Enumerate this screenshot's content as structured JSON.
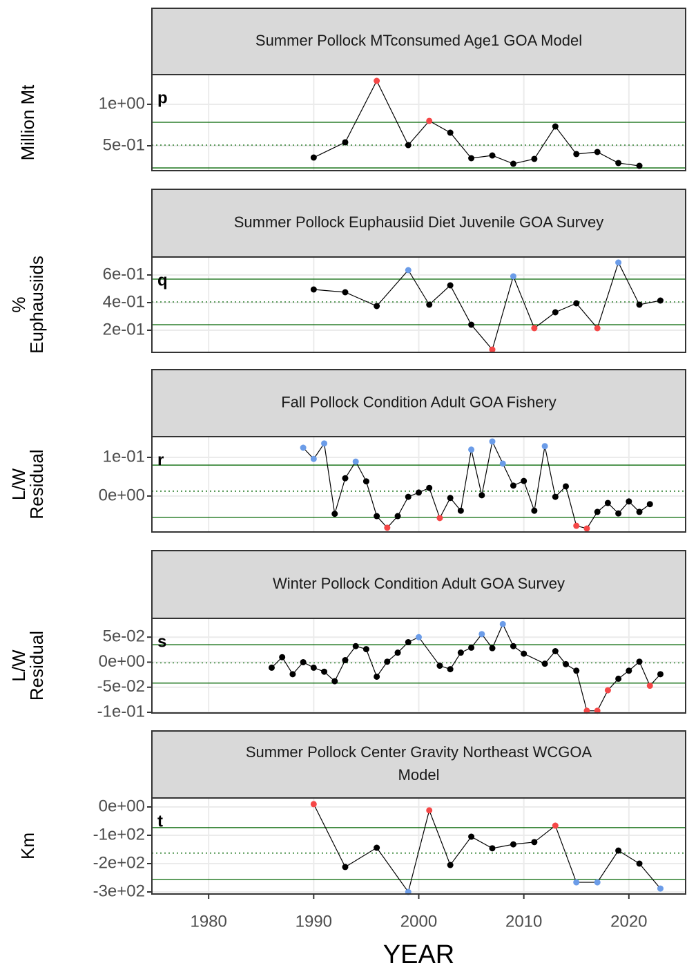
{
  "x_axis": {
    "label": "YEAR",
    "xlim": [
      1974.6,
      2025.4
    ],
    "xticks": [
      1980,
      1990,
      2000,
      2010,
      2020
    ]
  },
  "chart_data": [
    {
      "type": "line",
      "title": "Summer Pollock MTconsumed Age1 GOA Model",
      "panel_label": "p",
      "ylabel": [
        "Million Mt"
      ],
      "x": [
        1990,
        1993,
        1996,
        1999,
        2001,
        2003,
        2005,
        2007,
        2009,
        2011,
        2013,
        2015,
        2017,
        2019,
        2021
      ],
      "values": [
        0.358,
        0.542,
        1.283,
        0.508,
        0.8,
        0.658,
        0.35,
        0.383,
        0.283,
        0.342,
        0.733,
        0.4,
        0.425,
        0.292,
        0.258
      ],
      "point_colors": [
        "#000000",
        "#000000",
        "#f54747",
        "#000000",
        "#f54747",
        "#000000",
        "#000000",
        "#000000",
        "#000000",
        "#000000",
        "#000000",
        "#000000",
        "#000000",
        "#000000",
        "#000000"
      ],
      "line_color": "#000000",
      "reference_lines": {
        "upper": 0.783,
        "mean": 0.508,
        "lower": 0.233
      },
      "reference_line_color": "#006400",
      "ylim": [
        0.2,
        1.358
      ],
      "yticks": [
        {
          "value": 0.5,
          "label": "5e-01"
        },
        {
          "value": 1,
          "label": "1e+00"
        }
      ]
    },
    {
      "type": "line",
      "title": "Summer Pollock Euphausiid Diet Juvenile GOA Survey",
      "panel_label": "q",
      "ylabel": [
        "%",
        "Euphausiids"
      ],
      "x": [
        1990,
        1993,
        1996,
        1999,
        2001,
        2003,
        2005,
        2007,
        2009,
        2011,
        2013,
        2015,
        2017,
        2019,
        2021,
        2023
      ],
      "values": [
        0.495,
        0.475,
        0.375,
        0.635,
        0.385,
        0.525,
        0.24,
        0.06,
        0.59,
        0.215,
        0.33,
        0.395,
        0.215,
        0.69,
        0.385,
        0.415
      ],
      "point_colors": [
        "#000000",
        "#000000",
        "#000000",
        "#6b9ce8",
        "#000000",
        "#000000",
        "#000000",
        "#f54747",
        "#6b9ce8",
        "#f54747",
        "#000000",
        "#000000",
        "#f54747",
        "#6b9ce8",
        "#000000",
        "#000000"
      ],
      "line_color": "#000000",
      "reference_lines": {
        "upper": 0.57,
        "mean": 0.405,
        "lower": 0.24
      },
      "reference_line_color": "#006400",
      "ylim": [
        0.04,
        0.73
      ],
      "yticks": [
        {
          "value": 0.2,
          "label": "2e-01"
        },
        {
          "value": 0.4,
          "label": "4e-01"
        },
        {
          "value": 0.6,
          "label": "6e-01"
        }
      ]
    },
    {
      "type": "line",
      "title": "Fall Pollock Condition Adult GOA Fishery",
      "panel_label": "r",
      "ylabel": [
        "L/W",
        "Residual"
      ],
      "x": [
        1989,
        1990,
        1991,
        1992,
        1993,
        1994,
        1995,
        1996,
        1997,
        1998,
        1999,
        2000,
        2001,
        2002,
        2003,
        2004,
        2005,
        2006,
        2007,
        2008,
        2009,
        2010,
        2011,
        2012,
        2013,
        2014,
        2015,
        2016,
        2017,
        2018,
        2019,
        2020,
        2021,
        2022
      ],
      "values": [
        0.125,
        0.096,
        0.136,
        -0.046,
        0.046,
        0.089,
        0.038,
        -0.052,
        -0.082,
        -0.052,
        -0.002,
        0.009,
        0.021,
        -0.057,
        -0.005,
        -0.038,
        0.12,
        0.002,
        0.141,
        0.084,
        0.027,
        0.039,
        -0.038,
        0.129,
        -0.002,
        0.025,
        -0.077,
        -0.084,
        -0.041,
        -0.018,
        -0.045,
        -0.014,
        -0.041,
        -0.021
      ],
      "point_colors": [
        "#6b9ce8",
        "#6b9ce8",
        "#6b9ce8",
        "#000000",
        "#000000",
        "#6b9ce8",
        "#000000",
        "#000000",
        "#f54747",
        "#000000",
        "#000000",
        "#000000",
        "#000000",
        "#f54747",
        "#000000",
        "#000000",
        "#6b9ce8",
        "#000000",
        "#6b9ce8",
        "#6b9ce8",
        "#000000",
        "#000000",
        "#000000",
        "#6b9ce8",
        "#000000",
        "#000000",
        "#f54747",
        "#f54747",
        "#000000",
        "#000000",
        "#000000",
        "#000000",
        "#000000",
        "#000000"
      ],
      "line_color": "#000000",
      "reference_lines": {
        "upper": 0.08,
        "mean": 0.0125,
        "lower": -0.055
      },
      "reference_line_color": "#006400",
      "ylim": [
        -0.093,
        0.1536
      ],
      "yticks": [
        {
          "value": 0,
          "label": "0e+00"
        },
        {
          "value": 0.1,
          "label": "1e-01"
        }
      ]
    },
    {
      "type": "line",
      "title": "Winter Pollock Condition Adult GOA Survey",
      "panel_label": "s",
      "ylabel": [
        "L/W",
        "Residual"
      ],
      "x": [
        1986,
        1987,
        1988,
        1989,
        1990,
        1991,
        1992,
        1993,
        1994,
        1995,
        1996,
        1997,
        1998,
        1999,
        2000,
        2002,
        2003,
        2004,
        2005,
        2006,
        2007,
        2008,
        2009,
        2010,
        2012,
        2013,
        2014,
        2015,
        2016,
        2017,
        2018,
        2019,
        2020,
        2021,
        2022,
        2023
      ],
      "values": [
        -0.011,
        0.01,
        -0.024,
        0.0,
        -0.011,
        -0.019,
        -0.038,
        0.004,
        0.032,
        0.026,
        -0.029,
        0.001,
        0.019,
        0.04,
        0.05,
        -0.007,
        -0.014,
        0.019,
        0.029,
        0.056,
        0.028,
        0.076,
        0.032,
        0.017,
        -0.003,
        0.022,
        -0.004,
        -0.017,
        -0.097,
        -0.097,
        -0.056,
        -0.033,
        -0.017,
        0.001,
        -0.047,
        -0.024
      ],
      "point_colors": [
        "#000000",
        "#000000",
        "#000000",
        "#000000",
        "#000000",
        "#000000",
        "#000000",
        "#000000",
        "#000000",
        "#000000",
        "#000000",
        "#000000",
        "#000000",
        "#000000",
        "#6b9ce8",
        "#000000",
        "#000000",
        "#000000",
        "#000000",
        "#6b9ce8",
        "#000000",
        "#6b9ce8",
        "#000000",
        "#000000",
        "#000000",
        "#000000",
        "#000000",
        "#000000",
        "#f54747",
        "#f54747",
        "#f54747",
        "#000000",
        "#000000",
        "#000000",
        "#f54747",
        "#000000"
      ],
      "line_color": "#000000",
      "reference_lines": {
        "upper": 0.0347,
        "mean": -0.0014,
        "lower": -0.0417
      },
      "reference_line_color": "#006400",
      "ylim": [
        -0.1014,
        0.0875
      ],
      "yticks": [
        {
          "value": -0.1,
          "label": "-1e-01"
        },
        {
          "value": -0.05,
          "label": "-5e-02"
        },
        {
          "value": 0,
          "label": "0e+00"
        },
        {
          "value": 0.05,
          "label": "5e-02"
        }
      ]
    },
    {
      "type": "line",
      "title": [
        "Summer Pollock Center Gravity Northeast WCGOA",
        "Model"
      ],
      "panel_label": "t",
      "ylabel": [
        "Km"
      ],
      "x": [
        1990,
        1993,
        1996,
        1999,
        2001,
        2003,
        2005,
        2007,
        2009,
        2011,
        2013,
        2015,
        2017,
        2019,
        2021,
        2023
      ],
      "values": [
        10,
        -212,
        -144,
        -300,
        -12,
        -205,
        -105,
        -146,
        -132,
        -124,
        -66,
        -266,
        -266,
        -154,
        -200,
        -288
      ],
      "point_colors": [
        "#f54747",
        "#000000",
        "#000000",
        "#6b9ce8",
        "#f54747",
        "#000000",
        "#000000",
        "#000000",
        "#000000",
        "#000000",
        "#f54747",
        "#6b9ce8",
        "#6b9ce8",
        "#000000",
        "#000000",
        "#6b9ce8"
      ],
      "line_color": "#000000",
      "reference_lines": {
        "upper": -73,
        "mean": -163,
        "lower": -256
      },
      "reference_line_color": "#006400",
      "ylim": [
        -307.3,
        31.7
      ],
      "yticks": [
        {
          "value": -300,
          "label": "-3e+02"
        },
        {
          "value": -200,
          "label": "-2e+02"
        },
        {
          "value": -100,
          "label": "-1e+02"
        },
        {
          "value": 0,
          "label": "0e+00"
        }
      ]
    }
  ]
}
